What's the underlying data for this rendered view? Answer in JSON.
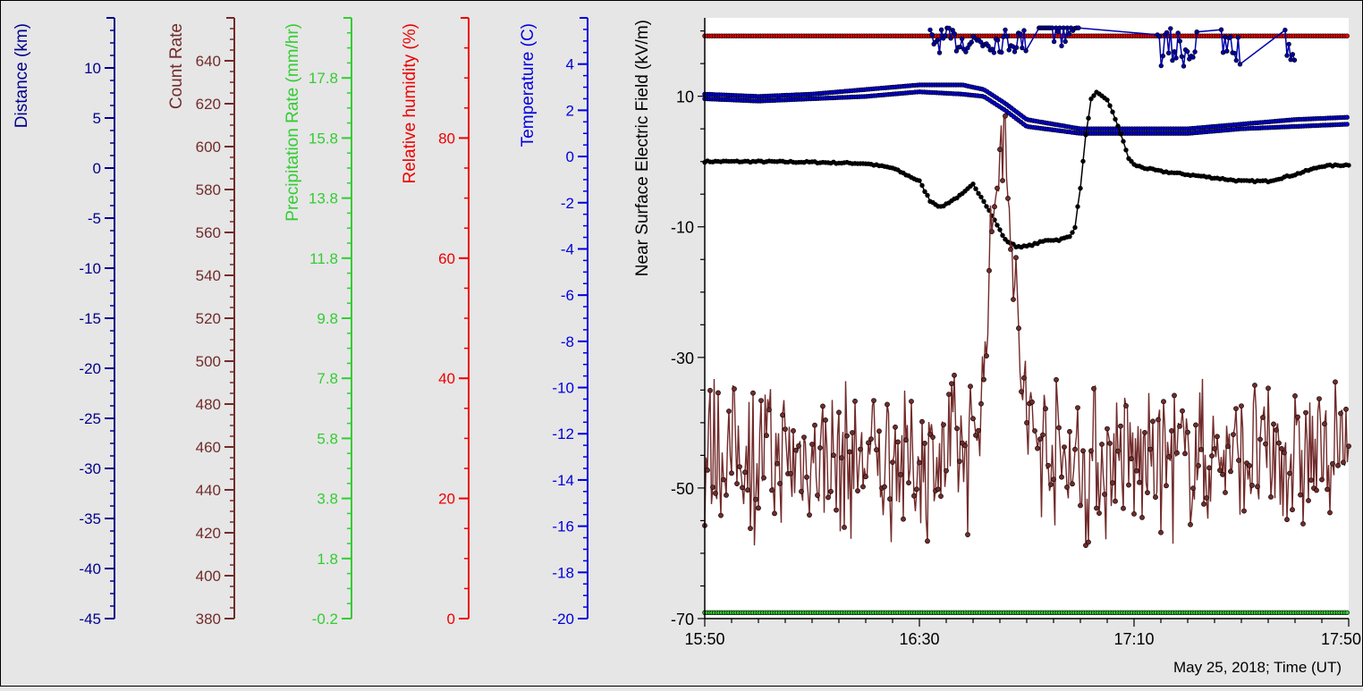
{
  "chart_data": {
    "type": "line",
    "date_label": "May 25, 2018; Time (UT)",
    "x_tick_labels": [
      "15:50",
      "16:30",
      "17:10",
      "17:50"
    ],
    "x_ticks_minutes": [
      0,
      40,
      80,
      120
    ],
    "xlim_minutes": [
      0,
      120
    ],
    "main_axis": {
      "label": "Near Surface Electric Field (kV/m)",
      "ylim": [
        -70,
        22
      ],
      "ticks": [
        10,
        -10,
        -30,
        -50,
        -70
      ],
      "color": "#000000"
    },
    "secondary_axes": [
      {
        "label": "Distance (km)",
        "color": "#00008b",
        "ylim": [
          -45,
          15
        ],
        "ticks": [
          10,
          5,
          0,
          -5,
          -10,
          -15,
          -20,
          -25,
          -30,
          -35,
          -40,
          -45
        ],
        "tick_labels": [
          "10",
          "5",
          "0",
          "-5",
          "-10",
          "-15",
          "-20",
          "-25",
          "-30",
          "-35",
          "-40",
          "-45"
        ]
      },
      {
        "label": "Count Rate",
        "color": "#722b2b",
        "ylim": [
          380,
          660
        ],
        "ticks": [
          640,
          620,
          600,
          580,
          560,
          540,
          520,
          500,
          480,
          460,
          440,
          420,
          400,
          380
        ],
        "tick_labels": [
          "640",
          "620",
          "600",
          "580",
          "560",
          "540",
          "520",
          "500",
          "480",
          "460",
          "440",
          "420",
          "400",
          "380"
        ]
      },
      {
        "label": "Precipitation Rate (mm/hr)",
        "color": "#33cc33",
        "ylim": [
          -0.2,
          19.8
        ],
        "ticks": [
          17.8,
          15.8,
          13.8,
          11.8,
          9.8,
          7.8,
          5.8,
          3.8,
          1.8,
          -0.2
        ],
        "tick_labels": [
          "17.8",
          "15.8",
          "13.8",
          "11.8",
          "9.8",
          "7.8",
          "5.8",
          "3.8",
          "1.8",
          "-0.2"
        ]
      },
      {
        "label": "Relative humidity (%)",
        "color": "#ee0000",
        "ylim": [
          0,
          100
        ],
        "ticks": [
          80,
          60,
          40,
          20,
          0
        ],
        "tick_labels": [
          "80",
          "60",
          "40",
          "20",
          "0"
        ]
      },
      {
        "label": "Temperature (C)",
        "color": "#0000dd",
        "ylim": [
          -20,
          6
        ],
        "ticks": [
          4,
          2,
          0,
          -2,
          -4,
          -6,
          -8,
          -10,
          -12,
          -14,
          -16,
          -18,
          -20
        ],
        "tick_labels": [
          "4",
          "2",
          "0",
          "-2",
          "-4",
          "-6",
          "-8",
          "-10",
          "-12",
          "-14",
          "-16",
          "-18",
          "-20"
        ]
      }
    ],
    "series": [
      {
        "axis": "Relative humidity (%)",
        "color": "#ee0000",
        "x": [
          0,
          20,
          40,
          60,
          80,
          100,
          120
        ],
        "y": [
          97,
          97,
          97,
          97,
          97,
          97,
          97
        ]
      },
      {
        "axis": "Precipitation Rate (mm/hr)",
        "color": "#33cc33",
        "x": [
          0,
          20,
          40,
          60,
          80,
          100,
          120
        ],
        "y": [
          0,
          0,
          0,
          0,
          0,
          0,
          0
        ]
      },
      {
        "axis": "Temperature (C)",
        "color": "#0000dd",
        "x": [
          0,
          10,
          20,
          30,
          40,
          48,
          52,
          56,
          60,
          70,
          80,
          90,
          100,
          110,
          120
        ],
        "y": [
          2.7,
          2.6,
          2.7,
          2.9,
          3.1,
          3.1,
          2.9,
          2.3,
          1.6,
          1.2,
          1.2,
          1.2,
          1.4,
          1.6,
          1.7
        ]
      },
      {
        "axis": "Temperature (C)",
        "color": "#0000dd",
        "x": [
          0,
          10,
          20,
          30,
          40,
          48,
          52,
          56,
          60,
          70,
          80,
          90,
          100,
          110,
          120
        ],
        "y": [
          2.5,
          2.4,
          2.5,
          2.6,
          2.8,
          2.7,
          2.6,
          2.0,
          1.3,
          1.0,
          1.0,
          1.0,
          1.2,
          1.3,
          1.4
        ]
      },
      {
        "axis": "Near Surface Electric Field (kV/m)",
        "color": "#000000",
        "x": [
          0,
          10,
          20,
          30,
          35,
          40,
          42,
          44,
          46,
          48,
          50,
          52,
          54,
          56,
          58,
          60,
          62,
          64,
          66,
          68,
          69,
          70,
          71,
          72,
          73,
          75,
          77,
          79,
          80,
          82,
          85,
          90,
          95,
          100,
          105,
          110,
          115,
          120
        ],
        "y": [
          0,
          0,
          -0.1,
          -0.3,
          -1,
          -3,
          -6,
          -7,
          -6,
          -5,
          -3.5,
          -6,
          -9,
          -12,
          -13,
          -13,
          -12.5,
          -12,
          -12,
          -11.5,
          -10,
          -4,
          4,
          9.5,
          10.5,
          9.5,
          5.5,
          0.5,
          -0.5,
          -1,
          -1.5,
          -2,
          -2.5,
          -3,
          -3,
          -2,
          -0.7,
          -0.5
        ]
      },
      {
        "axis": "Distance (km)",
        "color": "#0000aa",
        "x": [
          0,
          20,
          40,
          60,
          80,
          100,
          120
        ],
        "y": [
          14,
          14,
          14,
          14,
          14,
          14,
          14
        ]
      },
      {
        "axis": "Count Rate",
        "color": "#722b2b",
        "x": [
          0,
          10,
          20,
          30,
          40,
          45,
          50,
          52,
          54,
          56,
          58,
          60,
          65,
          70,
          80,
          90,
          100,
          110,
          120
        ],
        "y": [
          455,
          455,
          454,
          454,
          454,
          455,
          460,
          495,
          580,
          610,
          520,
          470,
          455,
          452,
          454,
          455,
          456,
          456,
          456
        ]
      }
    ]
  }
}
